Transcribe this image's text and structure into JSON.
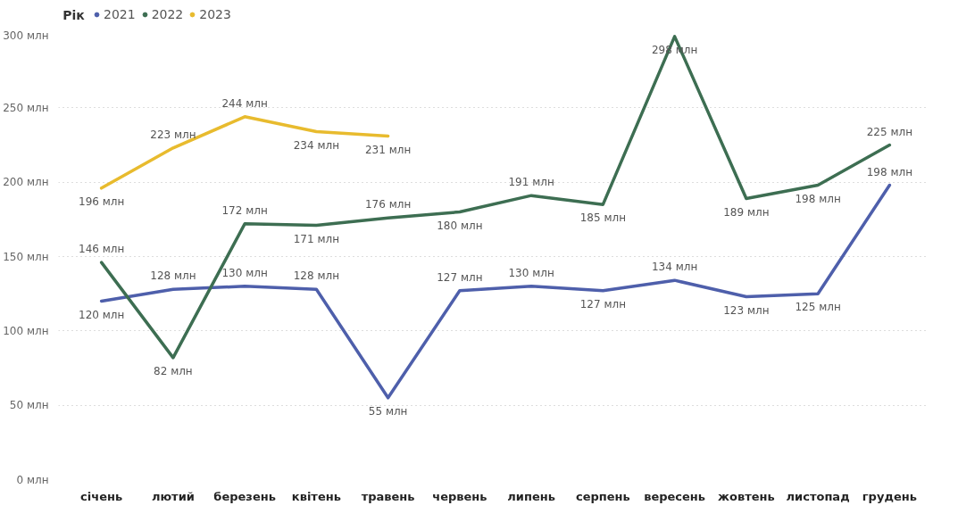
{
  "chart_data": {
    "type": "line",
    "legend_title": "Рік",
    "legend": "top left",
    "grid": "y",
    "marker": "none",
    "line_style": "solid",
    "categories": [
      "січень",
      "лютий",
      "березень",
      "квітень",
      "травень",
      "червень",
      "липень",
      "серпень",
      "вересень",
      "жовтень",
      "листопад",
      "грудень"
    ],
    "ylim": [
      0,
      300
    ],
    "yticks": [
      {
        "value": 0,
        "label": "0 млн"
      },
      {
        "value": 50,
        "label": "50 млн"
      },
      {
        "value": 100,
        "label": "100 млн"
      },
      {
        "value": 150,
        "label": "150 млн"
      },
      {
        "value": 200,
        "label": "200 млн"
      },
      {
        "value": 250,
        "label": "250 млн"
      },
      {
        "value": 300,
        "label": "300 млн"
      }
    ],
    "series": [
      {
        "name": "2021",
        "color": "#4e5fab",
        "values": [
          120,
          128,
          130,
          128,
          55,
          127,
          130,
          127,
          134,
          123,
          125,
          198
        ],
        "value_labels": [
          "120 млн",
          "128 млн",
          "130 млн",
          "128 млн",
          "55 млн",
          "127 млн",
          "130 млн",
          "127 млн",
          "134 млн",
          "123 млн",
          "125 млн",
          "198 млн"
        ]
      },
      {
        "name": "2022",
        "color": "#3d6e52",
        "values": [
          146,
          82,
          172,
          171,
          176,
          180,
          191,
          185,
          298,
          189,
          198,
          225
        ],
        "value_labels": [
          "146 млн",
          "82 млн",
          "172 млн",
          "171 млн",
          "176 млн",
          "180 млн",
          "191 млн",
          "185 млн",
          "298 млн",
          "189 млн",
          "198 млн",
          "225 млн"
        ]
      },
      {
        "name": "2023",
        "color": "#e8bb2e",
        "values": [
          196,
          223,
          244,
          234,
          231,
          null,
          null,
          null,
          null,
          null,
          null,
          null
        ],
        "value_labels": [
          "196 млн",
          "223 млн",
          "244 млн",
          "234 млн",
          "231 млн",
          null,
          null,
          null,
          null,
          null,
          null,
          null
        ]
      }
    ]
  }
}
